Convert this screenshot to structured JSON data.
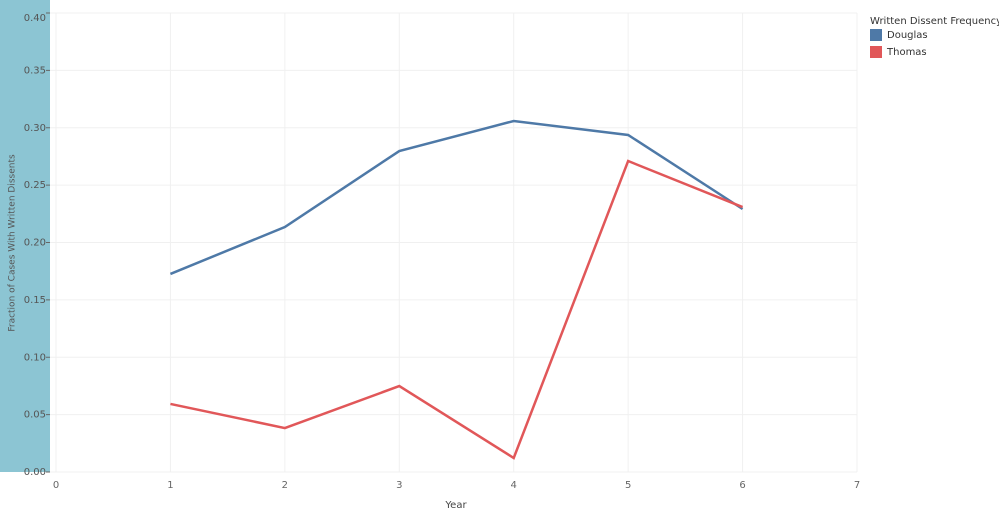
{
  "chart_data": {
    "type": "line",
    "x_label": "Year",
    "y_label": "Fraction of Cases With Written Dissents",
    "legend_title": "Written Dissent Frequency",
    "legend_position": "right",
    "grid": true,
    "x": [
      1,
      2,
      3,
      4,
      5,
      6
    ],
    "series": [
      {
        "name": "Douglas",
        "color": "#4e79a7",
        "values": [
          0.1726,
          0.2135,
          0.2797,
          0.3059,
          0.2937,
          0.2292
        ]
      },
      {
        "name": "Thomas",
        "color": "#e15759",
        "values": [
          0.0593,
          0.0383,
          0.0749,
          0.0122,
          0.271,
          0.2309
        ]
      }
    ],
    "xlim": [
      0,
      7
    ],
    "xticks": [
      0,
      1,
      2,
      3,
      4,
      5,
      6,
      7
    ],
    "ylim": [
      0,
      0.4
    ],
    "yticks": [
      {
        "value": 0,
        "label": "0.00"
      },
      {
        "value": 0.05,
        "label": "0.05"
      },
      {
        "value": 0.1,
        "label": "0.10"
      },
      {
        "value": 0.15,
        "label": "0.15"
      },
      {
        "value": 0.2,
        "label": "0.20"
      },
      {
        "value": 0.25,
        "label": "0.25"
      },
      {
        "value": 0.3,
        "label": "0.30"
      },
      {
        "value": 0.35,
        "label": "0.35"
      },
      {
        "value": 0.4,
        "label": "0.40"
      }
    ]
  }
}
